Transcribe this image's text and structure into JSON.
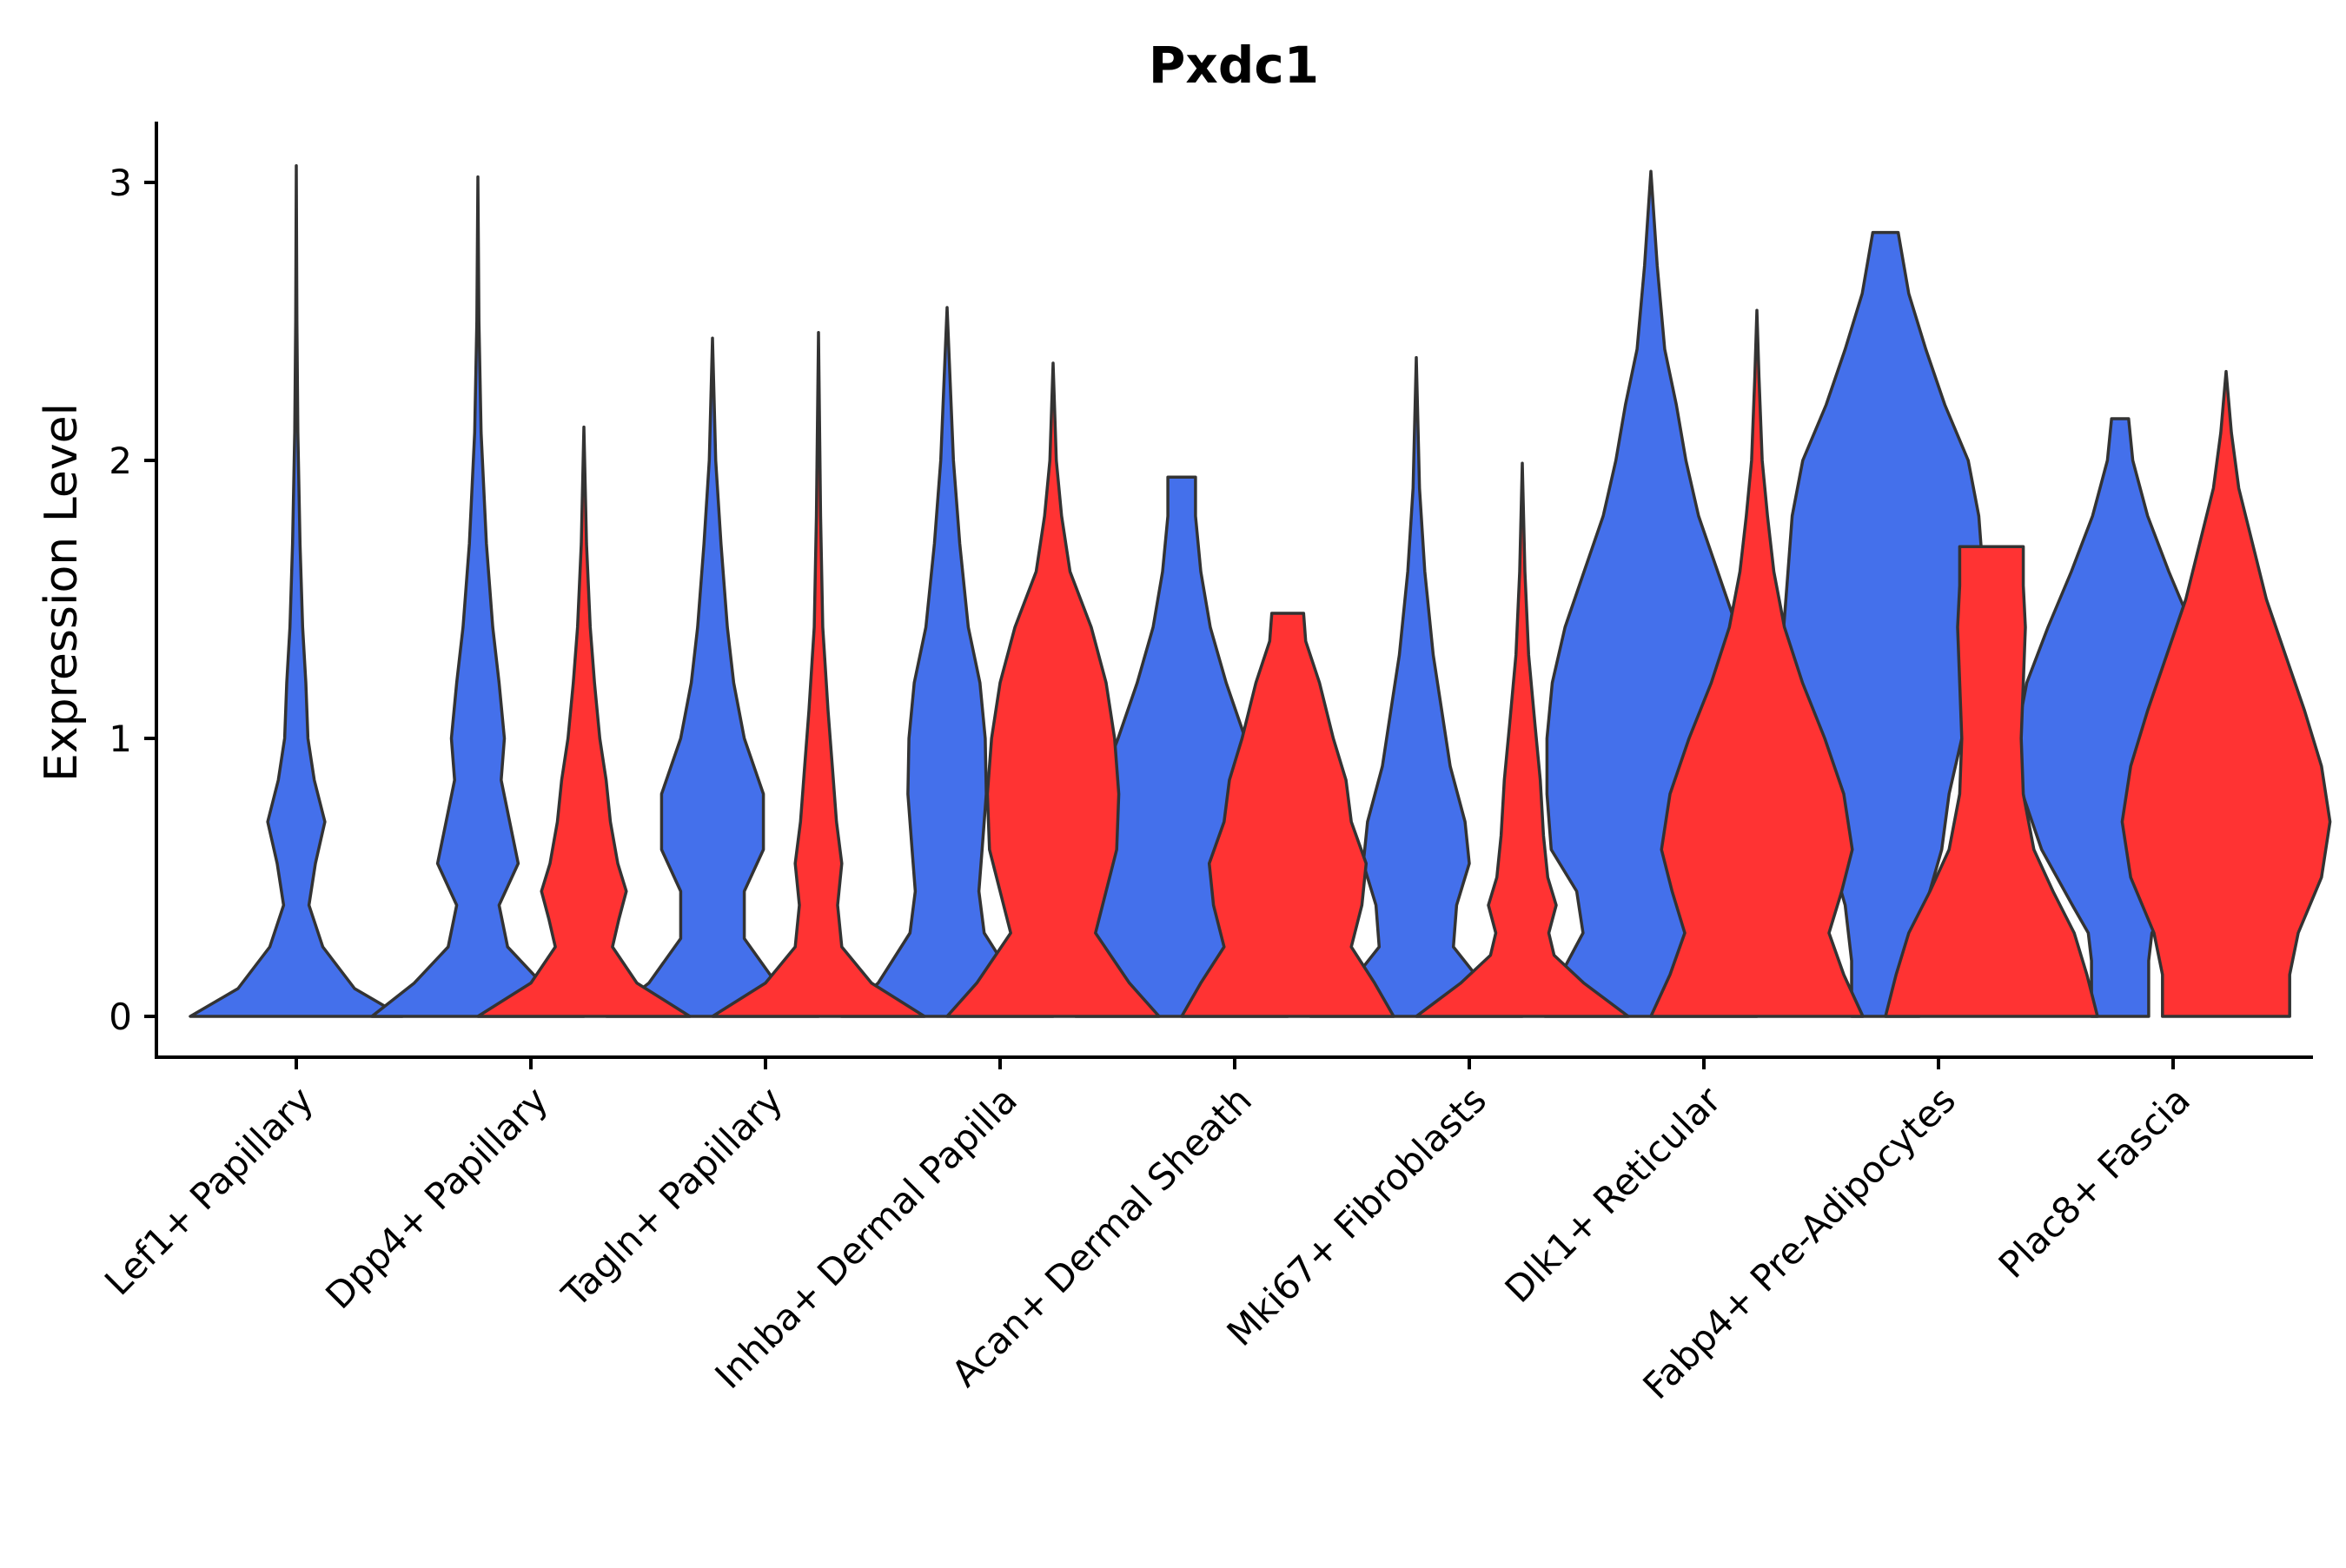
{
  "chart_data": {
    "type": "violin",
    "title": "Pxdc1",
    "xlabel": "",
    "ylabel": "Expression Level",
    "ylim": [
      -0.15,
      3.2
    ],
    "yticks": [
      0,
      1,
      2,
      3
    ],
    "ytick_labels": [
      "0",
      "1",
      "2",
      "3"
    ],
    "categories": [
      "Lef1+ Papillary",
      "Dpp4+ Papillary",
      "Tagln+ Papillary",
      "Inhba+ Dermal Papilla",
      "Acan+ Dermal Sheath",
      "Mki67+ Fibroblasts",
      "Dlk1+ Reticular",
      "Fabp4+ Pre-Adipocytes",
      "Plac8+ Fascia"
    ],
    "series": [
      {
        "name": "group_1",
        "color": "#4470eb",
        "violins": [
          {
            "category": "Lef1+ Papillary",
            "max": 3.06,
            "profile": [
              [
                0,
                1.0
              ],
              [
                0.1,
                0.55
              ],
              [
                0.25,
                0.25
              ],
              [
                0.4,
                0.12
              ],
              [
                0.55,
                0.18
              ],
              [
                0.7,
                0.27
              ],
              [
                0.85,
                0.17
              ],
              [
                1.0,
                0.11
              ],
              [
                1.2,
                0.09
              ],
              [
                1.4,
                0.06
              ],
              [
                1.7,
                0.035
              ],
              [
                2.1,
                0.015
              ],
              [
                2.5,
                0.006
              ],
              [
                3.06,
                0
              ]
            ]
          },
          {
            "category": "Dpp4+ Papillary",
            "max": 3.02,
            "profile": [
              [
                0,
                1.0
              ],
              [
                0.12,
                0.6
              ],
              [
                0.25,
                0.28
              ],
              [
                0.4,
                0.2
              ],
              [
                0.55,
                0.38
              ],
              [
                0.7,
                0.3
              ],
              [
                0.85,
                0.22
              ],
              [
                1.0,
                0.25
              ],
              [
                1.2,
                0.2
              ],
              [
                1.4,
                0.14
              ],
              [
                1.7,
                0.08
              ],
              [
                2.1,
                0.03
              ],
              [
                2.5,
                0.01
              ],
              [
                3.02,
                0
              ]
            ]
          },
          {
            "category": "Tagln+ Papillary",
            "max": 2.44,
            "profile": [
              [
                0,
                1.0
              ],
              [
                0.12,
                0.6
              ],
              [
                0.28,
                0.3
              ],
              [
                0.45,
                0.3
              ],
              [
                0.6,
                0.48
              ],
              [
                0.8,
                0.48
              ],
              [
                1.0,
                0.3
              ],
              [
                1.2,
                0.2
              ],
              [
                1.4,
                0.14
              ],
              [
                1.7,
                0.08
              ],
              [
                2.0,
                0.03
              ],
              [
                2.44,
                0
              ]
            ]
          },
          {
            "category": "Inhba+ Dermal Papilla",
            "max": 2.55,
            "profile": [
              [
                0,
                1.0
              ],
              [
                0.12,
                0.65
              ],
              [
                0.3,
                0.35
              ],
              [
                0.45,
                0.3
              ],
              [
                0.6,
                0.33
              ],
              [
                0.8,
                0.37
              ],
              [
                1.0,
                0.36
              ],
              [
                1.2,
                0.31
              ],
              [
                1.4,
                0.2
              ],
              [
                1.7,
                0.12
              ],
              [
                2.0,
                0.06
              ],
              [
                2.55,
                0
              ]
            ]
          },
          {
            "category": "Acan+ Dermal Sheath",
            "max": 1.94,
            "profile": [
              [
                0,
                1.0
              ],
              [
                0.15,
                0.96
              ],
              [
                0.3,
                0.86
              ],
              [
                0.45,
                0.8
              ],
              [
                0.6,
                0.86
              ],
              [
                0.8,
                0.8
              ],
              [
                1.0,
                0.6
              ],
              [
                1.2,
                0.42
              ],
              [
                1.4,
                0.27
              ],
              [
                1.6,
                0.18
              ],
              [
                1.8,
                0.13
              ],
              [
                1.94,
                0.13
              ]
            ]
          },
          {
            "category": "Mki67+ Fibroblasts",
            "max": 2.37,
            "profile": [
              [
                0,
                1.0
              ],
              [
                0.12,
                0.62
              ],
              [
                0.25,
                0.35
              ],
              [
                0.4,
                0.38
              ],
              [
                0.55,
                0.5
              ],
              [
                0.7,
                0.46
              ],
              [
                0.9,
                0.32
              ],
              [
                1.1,
                0.24
              ],
              [
                1.3,
                0.16
              ],
              [
                1.6,
                0.08
              ],
              [
                1.9,
                0.03
              ],
              [
                2.37,
                0
              ]
            ]
          },
          {
            "category": "Dlk1+ Reticular",
            "max": 3.04,
            "profile": [
              [
                0,
                1.0
              ],
              [
                0.15,
                0.85
              ],
              [
                0.3,
                0.64
              ],
              [
                0.45,
                0.7
              ],
              [
                0.6,
                0.94
              ],
              [
                0.8,
                0.98
              ],
              [
                1.0,
                0.98
              ],
              [
                1.2,
                0.93
              ],
              [
                1.4,
                0.81
              ],
              [
                1.6,
                0.63
              ],
              [
                1.8,
                0.45
              ],
              [
                2.0,
                0.33
              ],
              [
                2.2,
                0.24
              ],
              [
                2.4,
                0.13
              ],
              [
                2.7,
                0.06
              ],
              [
                3.04,
                0
              ]
            ]
          },
          {
            "category": "Fabp4+ Pre-Adipocytes",
            "max": 2.82,
            "profile": [
              [
                0,
                0.32
              ],
              [
                0.2,
                0.32
              ],
              [
                0.4,
                0.38
              ],
              [
                0.6,
                0.53
              ],
              [
                0.8,
                0.6
              ],
              [
                1.0,
                0.72
              ],
              [
                1.2,
                0.9
              ],
              [
                1.4,
                0.96
              ],
              [
                1.6,
                0.92
              ],
              [
                1.8,
                0.88
              ],
              [
                2.0,
                0.78
              ],
              [
                2.2,
                0.56
              ],
              [
                2.4,
                0.38
              ],
              [
                2.6,
                0.22
              ],
              [
                2.82,
                0.12
              ]
            ]
          },
          {
            "category": "Plac8+ Fascia",
            "max": 2.15,
            "profile": [
              [
                0,
                0.27
              ],
              [
                0.2,
                0.27
              ],
              [
                0.3,
                0.3
              ],
              [
                0.4,
                0.45
              ],
              [
                0.6,
                0.74
              ],
              [
                0.8,
                0.92
              ],
              [
                1.0,
                0.98
              ],
              [
                1.2,
                0.88
              ],
              [
                1.4,
                0.68
              ],
              [
                1.6,
                0.46
              ],
              [
                1.8,
                0.26
              ],
              [
                2.0,
                0.12
              ],
              [
                2.15,
                0.08
              ]
            ]
          }
        ]
      },
      {
        "name": "group_2",
        "color": "#ff3333",
        "violins": [
          {
            "category": "Dpp4+ Papillary",
            "max": 2.12,
            "profile": [
              [
                0,
                1.0
              ],
              [
                0.12,
                0.5
              ],
              [
                0.25,
                0.27
              ],
              [
                0.35,
                0.33
              ],
              [
                0.45,
                0.4
              ],
              [
                0.55,
                0.32
              ],
              [
                0.7,
                0.25
              ],
              [
                0.85,
                0.21
              ],
              [
                1.0,
                0.15
              ],
              [
                1.2,
                0.1
              ],
              [
                1.4,
                0.06
              ],
              [
                1.7,
                0.025
              ],
              [
                2.12,
                0
              ]
            ]
          },
          {
            "category": "Tagln+ Papillary",
            "max": 2.46,
            "profile": [
              [
                0,
                1.0
              ],
              [
                0.12,
                0.5
              ],
              [
                0.25,
                0.22
              ],
              [
                0.4,
                0.18
              ],
              [
                0.55,
                0.22
              ],
              [
                0.7,
                0.17
              ],
              [
                0.9,
                0.13
              ],
              [
                1.1,
                0.09
              ],
              [
                1.4,
                0.04
              ],
              [
                1.8,
                0.02
              ],
              [
                2.46,
                0
              ]
            ]
          },
          {
            "category": "Inhba+ Dermal Papilla",
            "max": 2.35,
            "profile": [
              [
                0,
                1.0
              ],
              [
                0.12,
                0.72
              ],
              [
                0.3,
                0.4
              ],
              [
                0.45,
                0.5
              ],
              [
                0.6,
                0.6
              ],
              [
                0.8,
                0.62
              ],
              [
                1.0,
                0.58
              ],
              [
                1.2,
                0.5
              ],
              [
                1.4,
                0.36
              ],
              [
                1.6,
                0.16
              ],
              [
                1.8,
                0.08
              ],
              [
                2.0,
                0.03
              ],
              [
                2.35,
                0
              ]
            ]
          },
          {
            "category": "Acan+ Dermal Sheath",
            "max": 1.45,
            "profile": [
              [
                0,
                1.0
              ],
              [
                0.12,
                0.82
              ],
              [
                0.25,
                0.6
              ],
              [
                0.4,
                0.7
              ],
              [
                0.55,
                0.74
              ],
              [
                0.7,
                0.6
              ],
              [
                0.85,
                0.55
              ],
              [
                1.0,
                0.43
              ],
              [
                1.2,
                0.3
              ],
              [
                1.35,
                0.17
              ],
              [
                1.45,
                0.15
              ]
            ]
          },
          {
            "category": "Mki67+ Fibroblasts",
            "max": 1.99,
            "profile": [
              [
                0,
                1.0
              ],
              [
                0.12,
                0.58
              ],
              [
                0.22,
                0.3
              ],
              [
                0.3,
                0.25
              ],
              [
                0.4,
                0.32
              ],
              [
                0.5,
                0.24
              ],
              [
                0.65,
                0.2
              ],
              [
                0.85,
                0.17
              ],
              [
                1.05,
                0.12
              ],
              [
                1.3,
                0.06
              ],
              [
                1.6,
                0.025
              ],
              [
                1.99,
                0
              ]
            ]
          },
          {
            "category": "Dlk1+ Reticular",
            "max": 2.54,
            "profile": [
              [
                0,
                1.0
              ],
              [
                0.15,
                0.82
              ],
              [
                0.3,
                0.68
              ],
              [
                0.45,
                0.8
              ],
              [
                0.6,
                0.9
              ],
              [
                0.8,
                0.82
              ],
              [
                1.0,
                0.64
              ],
              [
                1.2,
                0.43
              ],
              [
                1.4,
                0.26
              ],
              [
                1.6,
                0.16
              ],
              [
                1.8,
                0.1
              ],
              [
                2.0,
                0.05
              ],
              [
                2.3,
                0.02
              ],
              [
                2.54,
                0
              ]
            ]
          },
          {
            "category": "Fabp4+ Pre-Adipocytes",
            "max": 1.69,
            "profile": [
              [
                0,
                1.0
              ],
              [
                0.15,
                0.9
              ],
              [
                0.3,
                0.78
              ],
              [
                0.45,
                0.58
              ],
              [
                0.6,
                0.4
              ],
              [
                0.8,
                0.3
              ],
              [
                1.0,
                0.28
              ],
              [
                1.2,
                0.3
              ],
              [
                1.4,
                0.32
              ],
              [
                1.55,
                0.3
              ],
              [
                1.69,
                0.3
              ]
            ]
          },
          {
            "category": "Plac8+ Fascia",
            "max": 2.32,
            "profile": [
              [
                0,
                0.6
              ],
              [
                0.15,
                0.6
              ],
              [
                0.3,
                0.68
              ],
              [
                0.5,
                0.9
              ],
              [
                0.7,
                0.98
              ],
              [
                0.9,
                0.9
              ],
              [
                1.1,
                0.74
              ],
              [
                1.3,
                0.56
              ],
              [
                1.5,
                0.38
              ],
              [
                1.7,
                0.25
              ],
              [
                1.9,
                0.12
              ],
              [
                2.1,
                0.05
              ],
              [
                2.32,
                0
              ]
            ]
          }
        ]
      }
    ]
  }
}
